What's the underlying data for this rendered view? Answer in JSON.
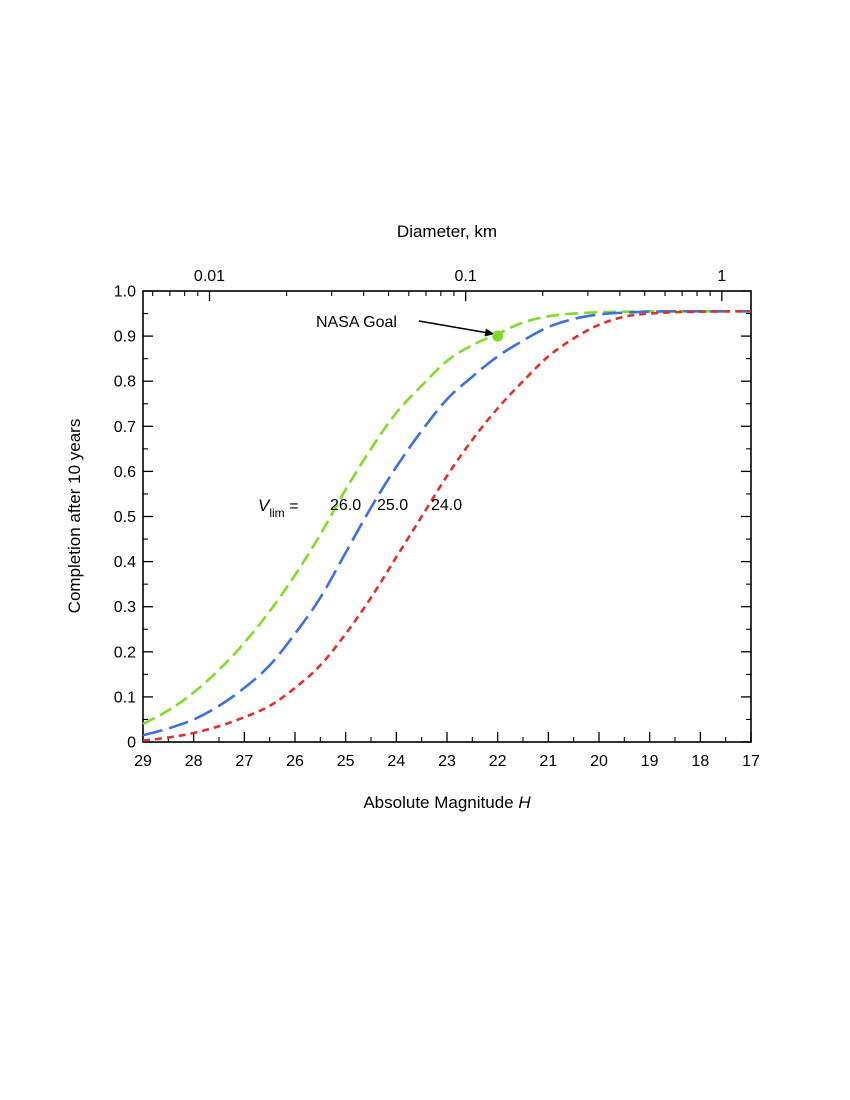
{
  "chart_data": {
    "type": "line",
    "x_axis": {
      "label": "Absolute Magnitude",
      "label_italic_suffix": "H",
      "range": [
        29,
        17
      ],
      "reversed": true,
      "ticks": [
        29,
        28,
        27,
        26,
        25,
        24,
        23,
        22,
        21,
        20,
        19,
        18,
        17
      ],
      "tick_labels": [
        "29",
        "28",
        "27",
        "26",
        "25",
        "24",
        "23",
        "22",
        "21",
        "20",
        "19",
        "18",
        "17"
      ]
    },
    "x2_axis": {
      "label": "Diameter, km",
      "scale": "log",
      "range": [
        0.0055,
        1.3
      ],
      "labeled_ticks": [
        {
          "value": 0.01,
          "label": "0.01"
        },
        {
          "value": 0.1,
          "label": "0.1"
        },
        {
          "value": 1,
          "label": "1"
        }
      ],
      "minor_ticks": [
        0.006,
        0.007,
        0.008,
        0.009,
        0.02,
        0.03,
        0.04,
        0.05,
        0.06,
        0.07,
        0.08,
        0.09,
        0.2,
        0.3,
        0.4,
        0.5,
        0.6,
        0.7,
        0.8,
        0.9
      ]
    },
    "y_axis": {
      "label": "Completion after 10 years",
      "range": [
        0,
        1.0
      ],
      "ticks": [
        0,
        0.1,
        0.2,
        0.3,
        0.4,
        0.5,
        0.6,
        0.7,
        0.8,
        0.9,
        1.0
      ],
      "tick_labels": [
        "0",
        "0.1",
        "0.2",
        "0.3",
        "0.4",
        "0.5",
        "0.6",
        "0.7",
        "0.8",
        "0.9",
        "1.0"
      ]
    },
    "grid": false,
    "series": [
      {
        "name": "26.0",
        "color": "#7fdc2a",
        "x": [
          29,
          28.5,
          28,
          27.5,
          27,
          26.5,
          26,
          25.5,
          25,
          24.5,
          24,
          23.5,
          23,
          22.5,
          22,
          21.5,
          21,
          20.5,
          20,
          19.5,
          19,
          18.5,
          18,
          17.5,
          17
        ],
        "y": [
          0.04,
          0.07,
          0.11,
          0.16,
          0.22,
          0.29,
          0.37,
          0.46,
          0.56,
          0.65,
          0.73,
          0.79,
          0.845,
          0.88,
          0.905,
          0.93,
          0.944,
          0.95,
          0.953,
          0.954,
          0.955,
          0.955,
          0.955,
          0.955,
          0.955
        ]
      },
      {
        "name": "25.0",
        "color": "#3d6fe0",
        "x": [
          29,
          28.5,
          28,
          27.5,
          27,
          26.5,
          26,
          25.5,
          25,
          24.5,
          24,
          23.5,
          23,
          22.5,
          22,
          21.5,
          21,
          20.5,
          20,
          19.5,
          19,
          18.5,
          18,
          17.5,
          17
        ],
        "y": [
          0.015,
          0.03,
          0.05,
          0.08,
          0.12,
          0.17,
          0.24,
          0.32,
          0.42,
          0.52,
          0.61,
          0.69,
          0.76,
          0.81,
          0.855,
          0.89,
          0.92,
          0.938,
          0.948,
          0.952,
          0.954,
          0.955,
          0.955,
          0.955,
          0.955
        ]
      },
      {
        "name": "24.0",
        "color": "#e0302a",
        "x": [
          29,
          28.5,
          28,
          27.5,
          27,
          26.5,
          26,
          25.5,
          25,
          24.5,
          24,
          23.5,
          23,
          22.5,
          22,
          21.5,
          21,
          20.5,
          20,
          19.5,
          19,
          18.5,
          18,
          17.5,
          17
        ],
        "y": [
          0.003,
          0.01,
          0.02,
          0.035,
          0.055,
          0.08,
          0.12,
          0.17,
          0.24,
          0.32,
          0.41,
          0.5,
          0.59,
          0.67,
          0.74,
          0.8,
          0.855,
          0.895,
          0.925,
          0.943,
          0.95,
          0.953,
          0.954,
          0.955,
          0.955
        ]
      }
    ],
    "annotations": {
      "nasa_goal": {
        "text": "NASA Goal",
        "x": 22,
        "y": 0.9,
        "color": "#7fdc2a"
      },
      "vlim_label": {
        "base": "V",
        "sub": "lim",
        "suffix": " ="
      },
      "curve_labels": [
        "26.0",
        "25.0",
        "24.0"
      ]
    },
    "legend": "none"
  }
}
